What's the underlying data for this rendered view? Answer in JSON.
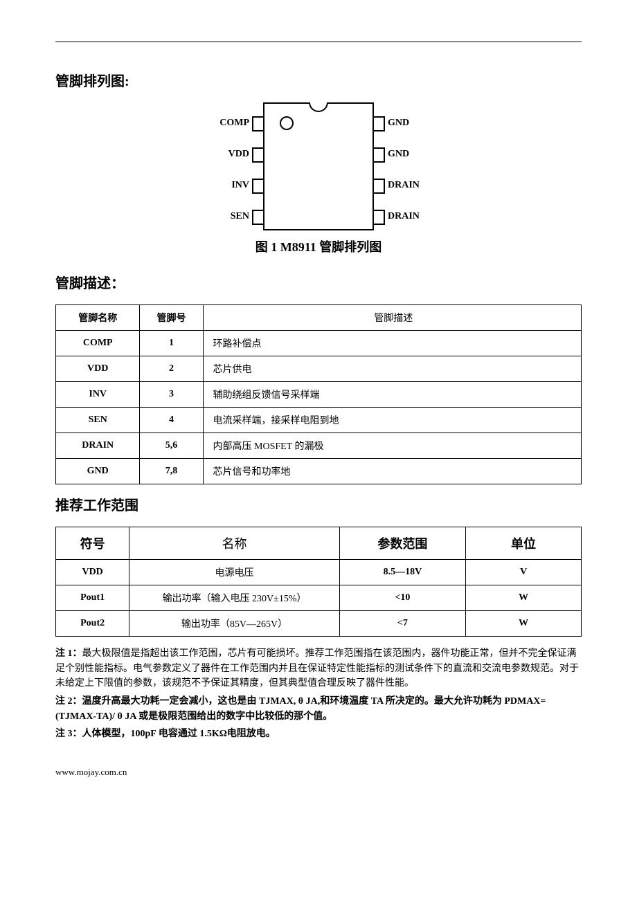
{
  "colors": {
    "text": "#000000",
    "border": "#000000",
    "bg": "#ffffff"
  },
  "section1": {
    "title": "管脚排列图:"
  },
  "diagram": {
    "left_labels": [
      "COMP",
      "VDD",
      "INV",
      "SEN"
    ],
    "right_labels": [
      "GND",
      "GND",
      "DRAIN",
      "DRAIN"
    ]
  },
  "fig_caption": "图 1 M8911 管脚排列图",
  "section2": {
    "title": "管脚描述："
  },
  "pin_table": {
    "headers": [
      "管脚名称",
      "管脚号",
      "管脚描述"
    ],
    "rows": [
      {
        "name": "COMP",
        "num": "1",
        "desc": "环路补偿点"
      },
      {
        "name": "VDD",
        "num": "2",
        "desc": "芯片供电"
      },
      {
        "name": "INV",
        "num": "3",
        "desc": "辅助绕组反馈信号采样端"
      },
      {
        "name": "SEN",
        "num": "4",
        "desc": "电流采样端，接采样电阻到地"
      },
      {
        "name": "DRAIN",
        "num": "5,6",
        "desc": "内部高压 MOSFET 的漏极"
      },
      {
        "name": "GND",
        "num": "7,8",
        "desc": "芯片信号和功率地"
      }
    ]
  },
  "section3": {
    "title": "推荐工作范围"
  },
  "range_table": {
    "headers": [
      "符号",
      "名称",
      "参数范围",
      "单位"
    ],
    "rows": [
      {
        "sym": "VDD",
        "name": "电源电压",
        "range": "8.5—18V",
        "unit": "V"
      },
      {
        "sym": "Pout1",
        "name": "输出功率（输入电压 230V±15%）",
        "range": "<10",
        "unit": "W"
      },
      {
        "sym": "Pout2",
        "name": "输出功率（85V—265V）",
        "range": "<7",
        "unit": "W"
      }
    ]
  },
  "notes": {
    "n1_lead": "注 1：",
    "n1_body": "最大极限值是指超出该工作范围，芯片有可能损坏。推荐工作范围指在该范围内，器件功能正常，但并不完全保证满足个别性能指标。电气参数定义了器件在工作范围内并且在保证特定性能指标的测试条件下的直流和交流电参数规范。对于未给定上下限值的参数，该规范不予保证其精度，但其典型值合理反映了器件性能。",
    "n2_lead": "注 2：",
    "n2_body": "温度升高最大功耗一定会减小，这也是由 TJMAX, θ JA,和环境温度 TA 所决定的。最大允许功耗为 PDMAX=(TJMAX-TA)/ θ JA 或是极限范围给出的数字中比较低的那个值。",
    "n3_lead": "注 3：",
    "n3_body": "人体模型，100pF 电容通过 1.5KΩ电阻放电。"
  },
  "footer": "www.mojay.com.cn"
}
